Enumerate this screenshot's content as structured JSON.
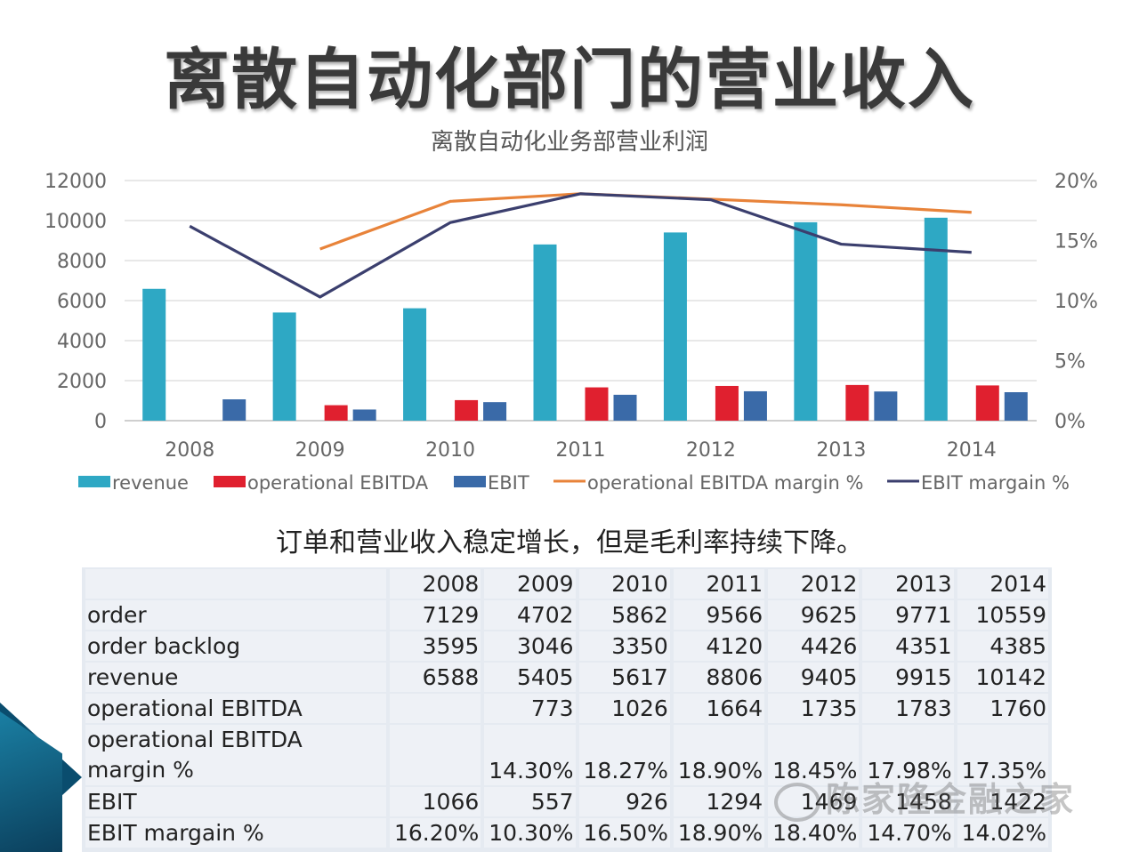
{
  "slide": {
    "title": "离散自动化部门的营业收入",
    "caption": "订单和营业收入稳定增长，但是毛利率持续下降。",
    "watermark": "陈家隆金融之家"
  },
  "chart_data": {
    "type": "bar",
    "title": "离散自动化业务部营业利润",
    "categories": [
      "2008",
      "2009",
      "2010",
      "2011",
      "2012",
      "2013",
      "2014"
    ],
    "ylim": [
      0,
      12000
    ],
    "yticks": [
      "12000",
      "10000",
      "8000",
      "6000",
      "4000",
      "2000",
      "0"
    ],
    "y2lim": [
      0,
      0.2
    ],
    "y2ticks": [
      "20%",
      "15%",
      "10%",
      "5%",
      "0%"
    ],
    "grid": true,
    "legend_position": "bottom",
    "series": [
      {
        "name": "revenue",
        "type": "bar",
        "axis": "left",
        "color": "#2ea8c4",
        "values": [
          6588,
          5405,
          5617,
          8806,
          9405,
          9915,
          10142
        ]
      },
      {
        "name": "operational EBITDA",
        "type": "bar",
        "axis": "left",
        "color": "#e0202f",
        "values": [
          null,
          773,
          1026,
          1664,
          1735,
          1783,
          1760
        ]
      },
      {
        "name": "EBIT",
        "type": "bar",
        "axis": "left",
        "color": "#3a6aa8",
        "values": [
          1066,
          557,
          926,
          1294,
          1469,
          1458,
          1422
        ]
      },
      {
        "name": "operational EBITDA margin %",
        "type": "line",
        "axis": "right",
        "color": "#e8833a",
        "values": [
          null,
          0.143,
          0.1827,
          0.189,
          0.1845,
          0.1798,
          0.1735
        ]
      },
      {
        "name": "EBIT margain %",
        "type": "line",
        "axis": "right",
        "color": "#3b3f6e",
        "values": [
          0.162,
          0.103,
          0.165,
          0.189,
          0.184,
          0.147,
          0.1402
        ]
      }
    ]
  },
  "table": {
    "header": [
      "",
      "2008",
      "2009",
      "2010",
      "2011",
      "2012",
      "2013",
      "2014"
    ],
    "rows": [
      [
        "order",
        "7129",
        "4702",
        "5862",
        "9566",
        "9625",
        "9771",
        "10559"
      ],
      [
        "order backlog",
        "3595",
        "3046",
        "3350",
        "4120",
        "4426",
        "4351",
        "4385"
      ],
      [
        "revenue",
        "6588",
        "5405",
        "5617",
        "8806",
        "9405",
        "9915",
        "10142"
      ],
      [
        "operational EBITDA",
        "",
        "773",
        "1026",
        "1664",
        "1735",
        "1783",
        "1760"
      ],
      [
        "operational EBITDA margin %",
        "",
        "14.30%",
        "18.27%",
        "18.90%",
        "18.45%",
        "17.98%",
        "17.35%"
      ],
      [
        "EBIT",
        "1066",
        "557",
        "926",
        "1294",
        "1469",
        "1458",
        "1422"
      ],
      [
        "EBIT margain %",
        "16.20%",
        "10.30%",
        "16.50%",
        "18.90%",
        "18.40%",
        "14.70%",
        "14.02%"
      ]
    ]
  }
}
